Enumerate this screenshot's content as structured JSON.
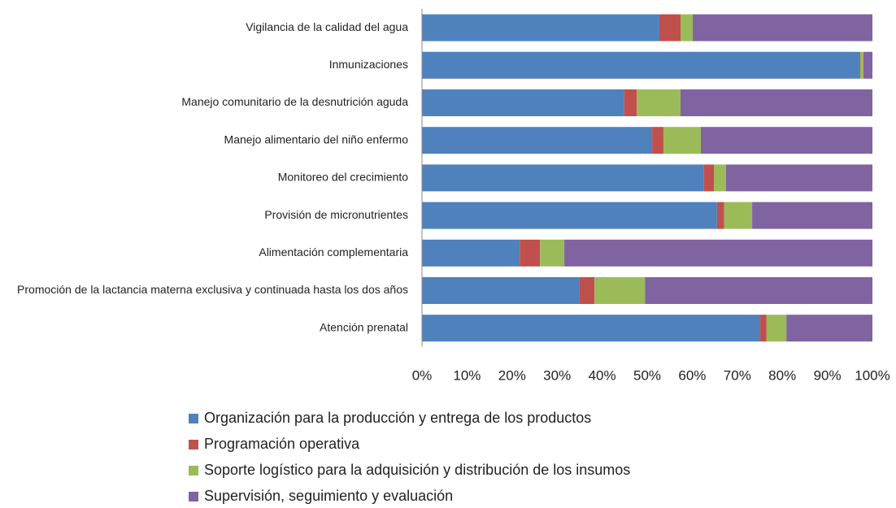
{
  "chart_data": {
    "type": "stacked_barh",
    "categories": [
      "Vigilancia de la calidad del agua",
      "Inmunizaciones",
      "Manejo comunitario de la desnutrición aguda",
      "Manejo alimentario del niño enfermo",
      "Monitoreo del crecimiento",
      "Provisión de micronutrientes",
      "Alimentación complementaria",
      "Promoción de la lactancia materna exclusiva y continuada hasta los dos años",
      "Atención prenatal"
    ],
    "series": [
      {
        "name": "Organización para la producción y entrega de los productos",
        "color": "#4f81bd",
        "values": [
          52.7,
          97.1,
          44.9,
          51.1,
          62.6,
          65.5,
          21.7,
          35.0,
          75.1
        ]
      },
      {
        "name": "Programación operativa",
        "color": "#c0504d",
        "values": [
          4.7,
          0.2,
          2.8,
          2.5,
          2.2,
          1.6,
          4.5,
          3.3,
          1.4
        ]
      },
      {
        "name": "Soporte logístico para la adquisición y distribución de los insumos",
        "color": "#9bbb59",
        "values": [
          2.7,
          0.7,
          9.7,
          8.3,
          2.7,
          6.2,
          5.4,
          11.2,
          4.4
        ]
      },
      {
        "name": "Supervisión, seguimiento y evaluación",
        "color": "#8064a2",
        "values": [
          39.9,
          2.0,
          42.6,
          38.1,
          32.5,
          26.7,
          68.4,
          50.5,
          19.1
        ]
      }
    ],
    "xlim": [
      0,
      100
    ],
    "xticks": [
      {
        "value": 0,
        "label": "0%"
      },
      {
        "value": 10,
        "label": "10%"
      },
      {
        "value": 20,
        "label": "20%"
      },
      {
        "value": 30,
        "label": "30%"
      },
      {
        "value": 40,
        "label": "40%"
      },
      {
        "value": 50,
        "label": "50%"
      },
      {
        "value": 60,
        "label": "60%"
      },
      {
        "value": 70,
        "label": "70%"
      },
      {
        "value": 80,
        "label": "80%"
      },
      {
        "value": 90,
        "label": "90%"
      },
      {
        "value": 100,
        "label": "100%"
      }
    ]
  }
}
